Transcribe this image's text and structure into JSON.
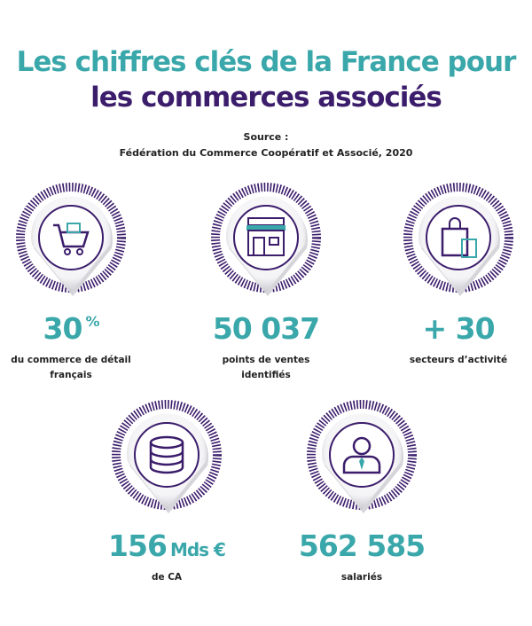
{
  "header": {
    "title_line1": "Les chiffres clés de la France pour",
    "title_line2": "les commerces associés",
    "source_label": "Source :",
    "source": "Fédération du Commerce Coopératif et Associé, 2020"
  },
  "stats": [
    {
      "value": "30",
      "unit": "%",
      "label": "du commerce de détail français"
    },
    {
      "value": "50 037",
      "label": "points de ventes identifiés"
    },
    {
      "value": "+ 30",
      "label": "secteurs d’activité"
    },
    {
      "value": "156",
      "unit": "Mds €",
      "label": "de CA"
    },
    {
      "value": "562 585",
      "label": "salariés"
    }
  ]
}
